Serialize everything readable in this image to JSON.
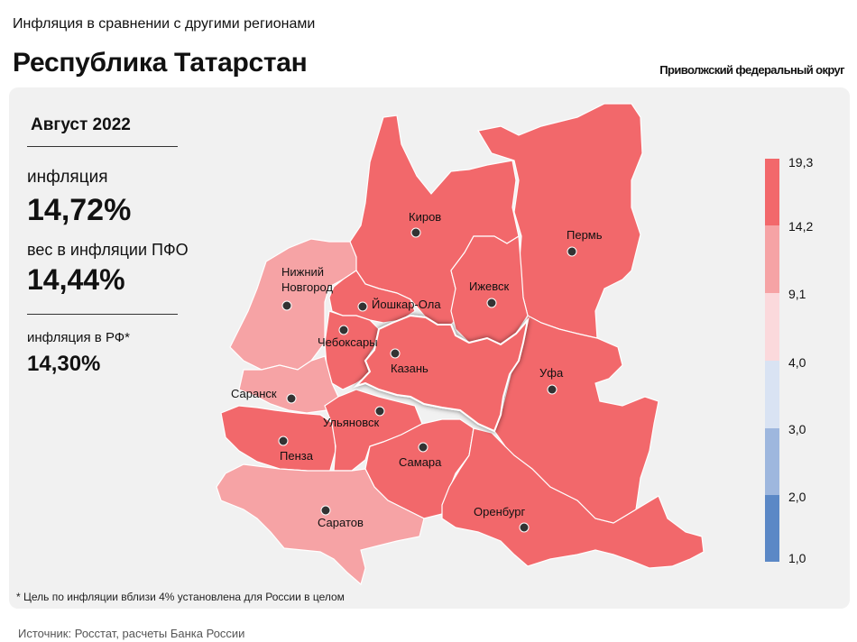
{
  "header": {
    "subtitle": "Инфляция в сравнении с другими регионами",
    "title": "Республика Татарстан",
    "district": "Приволжский федеральный округ"
  },
  "info": {
    "period": "Август 2022",
    "inflation_label": "инфляция",
    "inflation_value": "14,72%",
    "weight_label": "вес в инфляции ПФО",
    "weight_value": "14,44%",
    "rf_label": "инфляция в РФ*",
    "rf_value": "14,30%"
  },
  "colors": {
    "high": "#f2686b",
    "mid": "#f6a3a5",
    "light": "#fbd9dc",
    "pale_blue": "#d9e3f3",
    "blue": "#9eb7de",
    "dark_blue": "#5b88c6",
    "border": "#ffffff",
    "panel": "#f1f1f1"
  },
  "legend": {
    "labels": [
      "19,3",
      "14,2",
      "9,1",
      "4,0",
      "3,0",
      "2,0",
      "1,0"
    ]
  },
  "cities": [
    {
      "name": "Киров",
      "label": "Киров"
    },
    {
      "name": "Пермь",
      "label": "Пермь"
    },
    {
      "name": "Ижевск",
      "label": "Ижевск"
    },
    {
      "name": "Нижний Новгород",
      "label_line1": "Нижний",
      "label_line2": "Новгород"
    },
    {
      "name": "Йошкар-Ола",
      "label": "Йошкар-Ола"
    },
    {
      "name": "Чебоксары",
      "label": "Чебоксары"
    },
    {
      "name": "Казань",
      "label": "Казань"
    },
    {
      "name": "Уфа",
      "label": "Уфа"
    },
    {
      "name": "Саранск",
      "label": "Саранск"
    },
    {
      "name": "Ульяновск",
      "label": "Ульяновск"
    },
    {
      "name": "Пенза",
      "label": "Пенза"
    },
    {
      "name": "Самара",
      "label": "Самара"
    },
    {
      "name": "Оренбург",
      "label": "Оренбург"
    },
    {
      "name": "Саратов",
      "label": "Саратов"
    }
  ],
  "footnote": "* Цель по инфляции вблизи 4% установлена для России в целом",
  "source": "Источник: Росстат, расчеты Банка России"
}
